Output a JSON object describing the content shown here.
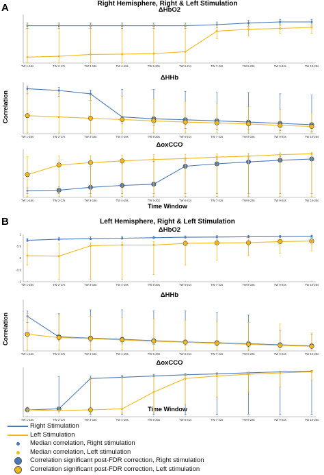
{
  "colors": {
    "right": "#4a78b8",
    "left": "#f1b81c",
    "axis": "#888888",
    "sig_edge": "#555555"
  },
  "panels": [
    {
      "letter": "A",
      "title": "Right Hemisphere, Right & Left Stimulation",
      "time_label": "Time Window"
    },
    {
      "letter": "B",
      "title": "Left Hemisphere, Right & Left Stimulation",
      "time_label": "Time Window"
    }
  ],
  "correlation_label": "Correlation",
  "legend": {
    "right_line": "Right Stimulation",
    "left_line": "Left Stimulation",
    "right_median": "Median correlation, Right stimulation",
    "left_median": "Median correlation, Left stimulation",
    "right_sig": "Correlation significant post-FDR correction, Right stimulation",
    "left_sig": "Correlation significant post-FDR correction, Left stimulation"
  },
  "chart_data": [
    {
      "type": "line",
      "panel": "A",
      "title": "ΔHbO2",
      "categories": [
        "TW 1-16s",
        "TW 2-17s",
        "TW 3-18s",
        "TW 4-19s",
        "TW 5-20s",
        "TW 6-21s",
        "TW 7-22s",
        "TW 8-23s",
        "TW 9-24s",
        "TW 10-25s"
      ],
      "ylim": [
        -0.8,
        1.0
      ],
      "yticks": [],
      "series": [
        {
          "name": "Right Stimulation",
          "values": [
            0.58,
            0.58,
            0.58,
            0.58,
            0.58,
            0.58,
            0.62,
            0.68,
            0.72,
            0.72
          ],
          "lower": [
            0.48,
            0.48,
            0.48,
            0.48,
            0.48,
            0.48,
            0.5,
            0.55,
            0.6,
            0.6
          ],
          "upper": [
            0.68,
            0.68,
            0.68,
            0.68,
            0.68,
            0.68,
            0.72,
            0.78,
            0.82,
            0.82
          ],
          "significant": [
            false,
            false,
            false,
            false,
            false,
            false,
            false,
            false,
            false,
            false
          ]
        },
        {
          "name": "Left Stimulation",
          "values": [
            -0.58,
            -0.55,
            -0.48,
            -0.47,
            -0.45,
            -0.38,
            0.38,
            0.45,
            0.48,
            0.52
          ],
          "lower": [
            -0.8,
            -0.8,
            -0.8,
            -0.8,
            -0.8,
            -0.8,
            0.1,
            0.2,
            0.3,
            0.3
          ],
          "upper": [
            0.62,
            0.62,
            0.62,
            0.62,
            0.62,
            0.62,
            0.62,
            0.62,
            0.62,
            0.62
          ],
          "significant": [
            false,
            false,
            false,
            false,
            false,
            false,
            false,
            false,
            false,
            false
          ]
        }
      ]
    },
    {
      "type": "line",
      "panel": "A",
      "title": "ΔHHb",
      "categories": [
        "TW 1-16s",
        "TW 2-17s",
        "TW 3-18s",
        "TW 4-19s",
        "TW 5-20s",
        "TW 6-21s",
        "TW 7-22s",
        "TW 8-23s",
        "TW 9-24s",
        "TW 10-25s"
      ],
      "ylim": [
        -1.0,
        1.0
      ],
      "yticks": [],
      "series": [
        {
          "name": "Right Stimulation",
          "values": [
            0.75,
            0.68,
            0.55,
            -0.35,
            -0.42,
            -0.46,
            -0.5,
            -0.55,
            -0.6,
            -0.65
          ],
          "lower": [
            0.55,
            0.45,
            0.3,
            -0.6,
            -0.7,
            -0.8,
            -0.82,
            -0.85,
            -0.88,
            -0.9
          ],
          "upper": [
            0.85,
            0.8,
            0.7,
            0.72,
            0.72,
            0.65,
            0.6,
            0.6,
            0.55,
            0.5
          ],
          "significant": [
            false,
            false,
            false,
            false,
            true,
            true,
            true,
            true,
            true,
            true
          ]
        },
        {
          "name": "Left Stimulation",
          "values": [
            -0.3,
            -0.35,
            -0.4,
            -0.45,
            -0.5,
            -0.55,
            -0.58,
            -0.62,
            -0.68,
            -0.72
          ],
          "lower": [
            -0.95,
            -0.95,
            -0.95,
            -0.95,
            -0.95,
            -0.95,
            -0.95,
            -0.95,
            -0.95,
            -0.95
          ],
          "upper": [
            0.7,
            0.55,
            0.5,
            0.45,
            0.35,
            0.25,
            0.15,
            0.05,
            -0.05,
            -0.2
          ],
          "significant": [
            true,
            false,
            true,
            true,
            true,
            true,
            true,
            true,
            true,
            true
          ]
        }
      ]
    },
    {
      "type": "line",
      "panel": "A",
      "title": "ΔoxCCO",
      "categories": [
        "TW 1-16s",
        "TW 2-17s",
        "TW 3-18s",
        "TW 4-19s",
        "TW 5-20s",
        "TW 6-21s",
        "TW 7-22s",
        "TW 8-23s",
        "TW 9-24s",
        "TW 10-25s"
      ],
      "ylim": [
        -1.0,
        1.0
      ],
      "yticks": [],
      "series": [
        {
          "name": "Right Stimulation",
          "values": [
            -0.72,
            -0.7,
            -0.58,
            -0.5,
            -0.45,
            0.3,
            0.4,
            0.48,
            0.55,
            0.6
          ],
          "lower": [
            -0.85,
            -0.85,
            -0.85,
            -0.85,
            -0.85,
            -0.85,
            -0.85,
            -0.85,
            -0.85,
            -0.85
          ],
          "upper": [
            -0.6,
            -0.55,
            0.3,
            0.4,
            0.5,
            0.55,
            0.6,
            0.65,
            0.7,
            0.72
          ],
          "significant": [
            false,
            true,
            true,
            true,
            true,
            true,
            true,
            true,
            true,
            true
          ]
        },
        {
          "name": "Left Stimulation",
          "values": [
            -0.05,
            0.35,
            0.45,
            0.52,
            0.58,
            0.62,
            0.68,
            0.72,
            0.78,
            0.82
          ],
          "lower": [
            -0.95,
            -0.95,
            -0.95,
            -0.95,
            -0.95,
            -0.95,
            -0.95,
            -0.95,
            -0.95,
            -0.95
          ],
          "upper": [
            0.7,
            0.72,
            0.74,
            0.76,
            0.78,
            0.8,
            0.82,
            0.84,
            0.86,
            0.88
          ],
          "significant": [
            true,
            true,
            true,
            true,
            false,
            false,
            false,
            false,
            false,
            false
          ]
        }
      ]
    },
    {
      "type": "line",
      "panel": "B",
      "title": "ΔHbO2",
      "categories": [
        "TW 1-16s",
        "TW 2-17s",
        "TW 3-18s",
        "TW 4-19s",
        "TW 5-20s",
        "TW 6-21s",
        "TW 7-22s",
        "TW 8-23s",
        "TW 9-24s",
        "TW 10-25s"
      ],
      "ylim": [
        -1.0,
        1.0
      ],
      "yticks": [
        1,
        0.5,
        0,
        -0.5,
        -1
      ],
      "series": [
        {
          "name": "Right Stimulation",
          "values": [
            0.75,
            0.8,
            0.82,
            0.84,
            0.86,
            0.88,
            0.89,
            0.9,
            0.91,
            0.92
          ],
          "lower": [
            0.7,
            0.75,
            0.78,
            0.8,
            0.82,
            0.84,
            0.85,
            0.86,
            0.87,
            0.88
          ],
          "upper": [
            0.85,
            0.88,
            0.9,
            0.92,
            0.93,
            0.94,
            0.95,
            0.96,
            0.96,
            0.97
          ],
          "significant": [
            false,
            false,
            false,
            false,
            false,
            false,
            false,
            false,
            false,
            false
          ]
        },
        {
          "name": "Left Stimulation",
          "values": [
            0.1,
            0.08,
            0.52,
            0.55,
            0.55,
            0.62,
            0.64,
            0.65,
            0.7,
            0.72
          ],
          "lower": [
            -0.3,
            -0.9,
            -0.9,
            -0.9,
            -0.7,
            -0.3,
            -0.1,
            0.1,
            0.2,
            0.3
          ],
          "upper": [
            0.6,
            0.62,
            0.65,
            0.68,
            0.7,
            0.75,
            0.78,
            0.8,
            0.82,
            0.85
          ],
          "significant": [
            false,
            false,
            false,
            false,
            false,
            true,
            true,
            true,
            true,
            true
          ]
        }
      ]
    },
    {
      "type": "line",
      "panel": "B",
      "title": "ΔHHb",
      "categories": [
        "TW 1-16s",
        "TW 2-17s",
        "TW 3-18s",
        "TW 4-19s",
        "TW 5-20s",
        "TW 6-21s",
        "TW 7-22s",
        "TW 8-23s",
        "TW 9-24s",
        "TW 10-25s"
      ],
      "ylim": [
        -1.0,
        1.0
      ],
      "yticks": [],
      "series": [
        {
          "name": "Right Stimulation",
          "values": [
            0.35,
            -0.45,
            -0.5,
            -0.55,
            -0.6,
            -0.65,
            -0.68,
            -0.72,
            -0.76,
            -0.8
          ],
          "lower": [
            0.1,
            -0.6,
            -0.65,
            -0.7,
            -0.75,
            -0.78,
            -0.8,
            -0.85,
            -0.88,
            -0.9
          ],
          "upper": [
            0.55,
            0.45,
            0.6,
            0.6,
            0.55,
            0.55,
            0.5,
            0.4,
            -0.2,
            -0.35
          ],
          "significant": [
            false,
            true,
            true,
            true,
            true,
            true,
            true,
            true,
            true,
            true
          ]
        },
        {
          "name": "Left Stimulation",
          "values": [
            -0.35,
            -0.48,
            -0.52,
            -0.57,
            -0.62,
            -0.66,
            -0.7,
            -0.74,
            -0.78,
            -0.82
          ],
          "lower": [
            -0.95,
            -0.95,
            -0.95,
            -0.95,
            -0.95,
            -0.95,
            -0.95,
            -0.95,
            -0.95,
            -0.95
          ],
          "upper": [
            0.45,
            0.4,
            0.35,
            0.3,
            0.25,
            0.2,
            0.15,
            0.1,
            0.05,
            -0.3
          ],
          "significant": [
            true,
            true,
            true,
            true,
            true,
            true,
            true,
            true,
            true,
            true
          ]
        }
      ]
    },
    {
      "type": "line",
      "panel": "B",
      "title": "ΔoxCCO",
      "categories": [
        "TW 1-16s",
        "TW 2-17s",
        "TW 3-18s",
        "TW 4-19s",
        "TW 5-20s",
        "TW 6-21s",
        "TW 7-22s",
        "TW 8-23s",
        "TW 9-24s",
        "TW 10-25s"
      ],
      "ylim": [
        -1.0,
        1.0
      ],
      "yticks": [],
      "series": [
        {
          "name": "Right Stimulation",
          "values": [
            -0.72,
            -0.68,
            0.55,
            0.6,
            0.65,
            0.7,
            0.74,
            0.78,
            0.82,
            0.85
          ],
          "lower": [
            -0.8,
            -0.78,
            -0.9,
            -0.9,
            -0.9,
            -0.9,
            -0.9,
            -0.9,
            -0.9,
            -0.9
          ],
          "upper": [
            -0.62,
            0.62,
            0.65,
            0.68,
            0.72,
            0.75,
            0.78,
            0.8,
            0.83,
            0.86
          ],
          "significant": [
            true,
            true,
            false,
            false,
            false,
            false,
            false,
            false,
            false,
            false
          ]
        },
        {
          "name": "Left Stimulation",
          "values": [
            -0.72,
            -0.75,
            -0.72,
            -0.68,
            0.0,
            0.55,
            0.65,
            0.72,
            0.78,
            0.82
          ],
          "lower": [
            -0.8,
            -0.85,
            -0.85,
            -0.85,
            -0.8,
            -0.5,
            -0.2,
            0.0,
            0.2,
            0.5
          ],
          "upper": [
            -0.6,
            -0.6,
            0.55,
            0.6,
            0.65,
            0.7,
            0.75,
            0.8,
            0.84,
            0.88
          ],
          "significant": [
            false,
            false,
            true,
            false,
            false,
            false,
            false,
            false,
            false,
            false
          ]
        }
      ]
    }
  ]
}
